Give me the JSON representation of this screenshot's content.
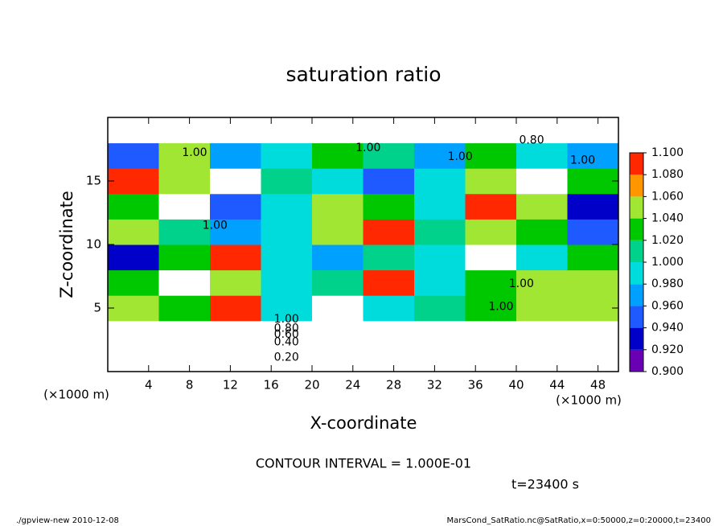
{
  "chart_data": {
    "type": "heatmap",
    "title": "saturation ratio",
    "x_label": "X-coordinate",
    "y_label": "Z-coordinate",
    "x_unit": "(×1000 m)",
    "y_unit": "(×1000 m)",
    "contour_note": "CONTOUR INTERVAL = 1.000E-01",
    "time_label": "t=23400 s",
    "footer_left": "./gpview-new  2010-12-08",
    "footer_right": "MarsCond_SatRatio.nc@SatRatio,x=0:50000,z=0:20000,t=23400",
    "xlim": [
      0,
      50
    ],
    "ylim": [
      0,
      20
    ],
    "xticks": [
      4,
      8,
      12,
      16,
      20,
      24,
      28,
      32,
      36,
      40,
      44,
      48
    ],
    "yticks": [
      5,
      10,
      15
    ],
    "x": [
      2.5,
      7.5,
      12.5,
      17.5,
      22.5,
      27.5,
      32.5,
      37.5,
      42.5,
      47.5
    ],
    "y": [
      1,
      3,
      5,
      7,
      9,
      11,
      13,
      15,
      17,
      19
    ],
    "z": [
      [
        0.15,
        0.15,
        0.15,
        0.15,
        0.15,
        0.15,
        0.15,
        0.15,
        0.15,
        0.15
      ],
      [
        0.6,
        0.6,
        0.6,
        0.6,
        0.6,
        0.6,
        0.6,
        0.6,
        0.6,
        0.6
      ],
      [
        1.06,
        1.04,
        1.08,
        1.0,
        1.12,
        1.0,
        1.02,
        1.04,
        1.06,
        1.05
      ],
      [
        1.04,
        1.12,
        1.06,
        1.0,
        1.02,
        1.08,
        1.0,
        1.04,
        1.06,
        1.05
      ],
      [
        0.94,
        1.04,
        1.08,
        1.0,
        0.98,
        1.02,
        1.0,
        1.12,
        1.0,
        1.04
      ],
      [
        1.06,
        1.02,
        0.98,
        1.0,
        1.06,
        1.08,
        1.02,
        1.06,
        1.04,
        0.96
      ],
      [
        1.04,
        1.12,
        0.96,
        1.0,
        1.06,
        1.04,
        1.0,
        1.08,
        1.06,
        0.94
      ],
      [
        1.08,
        1.06,
        1.12,
        1.02,
        1.0,
        0.96,
        1.0,
        1.06,
        1.12,
        1.04
      ],
      [
        0.96,
        1.06,
        0.98,
        1.0,
        1.04,
        1.02,
        0.98,
        1.04,
        1.0,
        0.98
      ],
      [
        0.7,
        0.7,
        0.75,
        0.7,
        0.7,
        0.75,
        0.7,
        0.7,
        0.8,
        0.75
      ]
    ],
    "colorbar_ticks": [
      {
        "value": 0.9,
        "label": "0.900"
      },
      {
        "value": 0.92,
        "label": "0.920"
      },
      {
        "value": 0.94,
        "label": "0.940"
      },
      {
        "value": 0.96,
        "label": "0.960"
      },
      {
        "value": 0.98,
        "label": "0.980"
      },
      {
        "value": 1.0,
        "label": "1.000"
      },
      {
        "value": 1.02,
        "label": "1.020"
      },
      {
        "value": 1.04,
        "label": "1.040"
      },
      {
        "value": 1.06,
        "label": "1.060"
      },
      {
        "value": 1.08,
        "label": "1.080"
      },
      {
        "value": 1.1,
        "label": "1.100"
      }
    ],
    "colors": [
      "#6a00b4",
      "#0000c8",
      "#1e5aff",
      "#00a0ff",
      "#00dcdc",
      "#00d28c",
      "#00c800",
      "#a0e632",
      "#ff9600",
      "#ff2800"
    ],
    "annotations": [
      {
        "text": "1.00",
        "x": 8.5,
        "y": 17.2
      },
      {
        "text": "1.00",
        "x": 25.5,
        "y": 17.6
      },
      {
        "text": "1.00",
        "x": 34.5,
        "y": 16.9
      },
      {
        "text": "0.80",
        "x": 41.5,
        "y": 18.2
      },
      {
        "text": "1.00",
        "x": 46.5,
        "y": 16.6
      },
      {
        "text": "1.00",
        "x": 10.5,
        "y": 11.5
      },
      {
        "text": "1.00",
        "x": 40.5,
        "y": 6.9
      },
      {
        "text": "1.00",
        "x": 38.5,
        "y": 5.1
      },
      {
        "text": "1.00",
        "x": 17.5,
        "y": 4.1
      },
      {
        "text": "0.80",
        "x": 17.5,
        "y": 3.4
      },
      {
        "text": "0.60",
        "x": 17.5,
        "y": 2.9
      },
      {
        "text": "0.40",
        "x": 17.5,
        "y": 2.3
      },
      {
        "text": "0.20",
        "x": 17.5,
        "y": 1.1
      }
    ]
  }
}
